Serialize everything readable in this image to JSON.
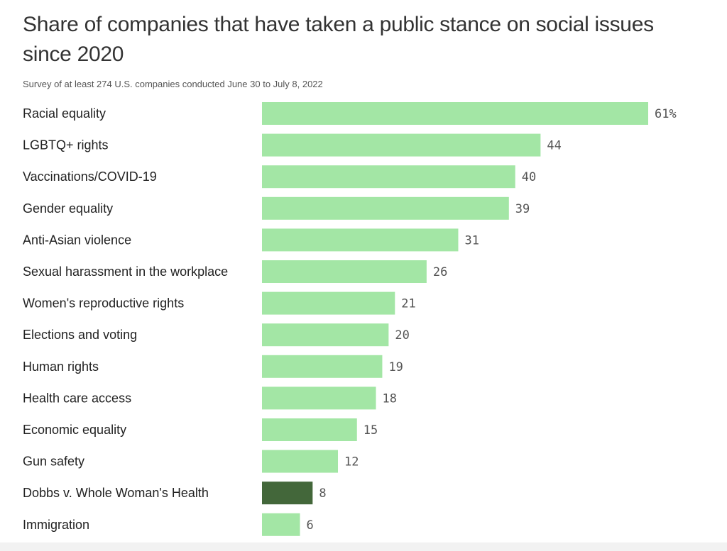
{
  "title": "Share of companies that have taken a public stance on social issues since 2020",
  "subtitle": "Survey of at least 274 U.S. companies conducted June 30 to July 8, 2022",
  "colors": {
    "bar": "#a3e6a5",
    "highlight": "#43673a",
    "text": "#333333",
    "value_text": "#555555"
  },
  "chart_data": {
    "type": "bar",
    "orientation": "horizontal",
    "categories": [
      "Racial equality",
      "LGBTQ+ rights",
      "Vaccinations/COVID-19",
      "Gender equality",
      "Anti-Asian violence",
      "Sexual harassment in the workplace",
      "Women's reproductive rights",
      "Elections and voting",
      "Human rights",
      "Health care access",
      "Economic equality",
      "Gun safety",
      "Dobbs v. Whole Woman's Health",
      "Immigration"
    ],
    "values": [
      61,
      44,
      40,
      39,
      31,
      26,
      21,
      20,
      19,
      18,
      15,
      12,
      8,
      6
    ],
    "value_labels": [
      "61%",
      "44",
      "40",
      "39",
      "31",
      "26",
      "21",
      "20",
      "19",
      "18",
      "15",
      "12",
      "8",
      "6"
    ],
    "highlighted_category": "Dobbs v. Whole Woman's Health",
    "xlim": [
      0,
      61
    ],
    "grid": false,
    "legend": "none"
  }
}
